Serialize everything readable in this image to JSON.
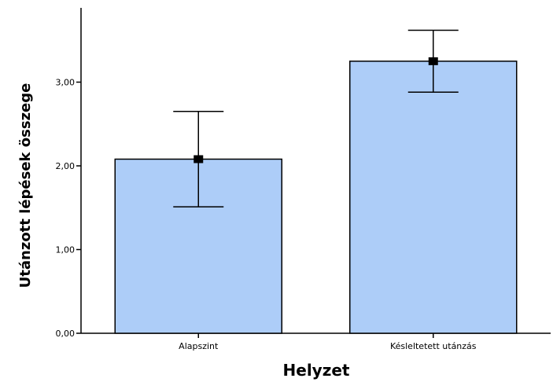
{
  "chart_data": {
    "type": "bar",
    "title": "",
    "xlabel": "Helyzet",
    "ylabel": "Utánzott lépések összege",
    "categories": [
      "Alapszint",
      "Késleltetett utánzás"
    ],
    "values": [
      2.08,
      3.25
    ],
    "error_low": [
      1.51,
      2.88
    ],
    "error_high": [
      2.65,
      3.62
    ],
    "ylim": [
      0,
      3.85
    ],
    "yticks": [
      0,
      1,
      2,
      3
    ],
    "ytick_labels": [
      "0,00",
      "1,00",
      "2,00",
      "3,00"
    ],
    "grid": false,
    "legend": "none",
    "bar_color": "#adcdf8",
    "marker_color": "#000000"
  }
}
